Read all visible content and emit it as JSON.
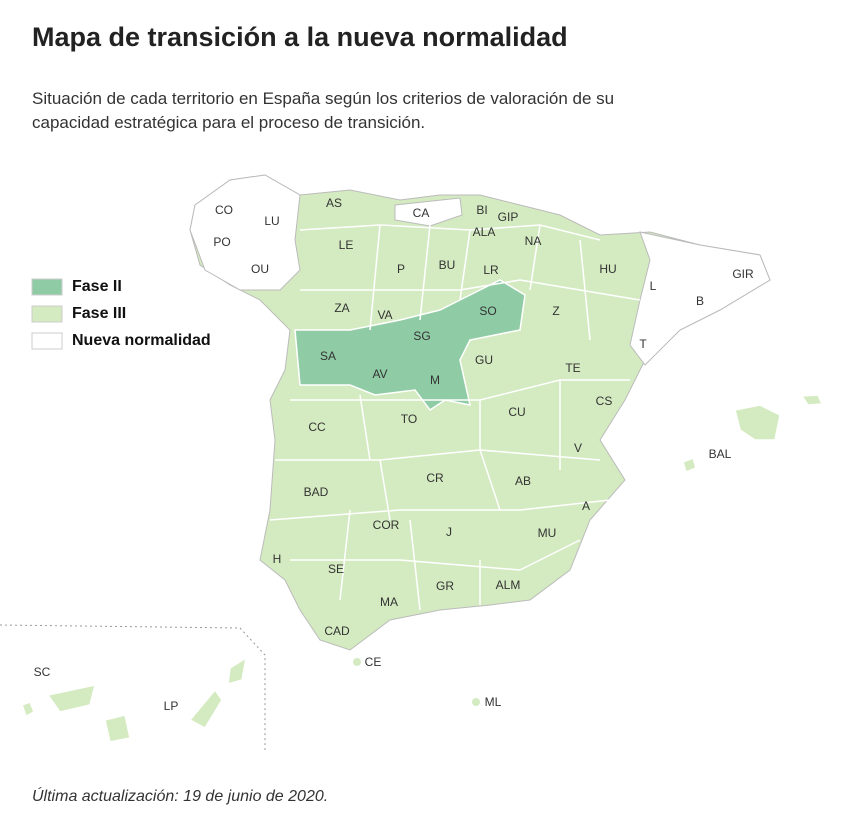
{
  "header": {
    "title": "Mapa de transición a la nueva normalidad",
    "subtitle": "Situación de cada territorio en España según los criterios de valoración de su capacidad estratégica para el proceso de transición."
  },
  "legend": [
    {
      "label": "Fase II",
      "color": "#8fcca6",
      "regions": [
        "SO",
        "SG",
        "SA",
        "AV",
        "M"
      ]
    },
    {
      "label": "Fase III",
      "color": "#d4ebc1",
      "regions": [
        "AS",
        "LE",
        "P",
        "BU",
        "BI",
        "GIP",
        "ALA",
        "NA",
        "LR",
        "HU",
        "ZA",
        "VA",
        "Z",
        "GU",
        "TE",
        "CC",
        "TO",
        "CU",
        "CS",
        "V",
        "BAD",
        "CR",
        "AB",
        "A",
        "BAL",
        "COR",
        "J",
        "MU",
        "H",
        "SE",
        "GR",
        "ALM",
        "MA",
        "CAD",
        "CE",
        "ML",
        "SC",
        "LP"
      ]
    },
    {
      "label": "Nueva normalidad",
      "color": "#ffffff",
      "regions": [
        "CO",
        "LU",
        "PO",
        "OU",
        "CA",
        "L",
        "B",
        "GIR",
        "T"
      ]
    }
  ],
  "footer": "Última actualización: 19 de junio de 2020."
}
